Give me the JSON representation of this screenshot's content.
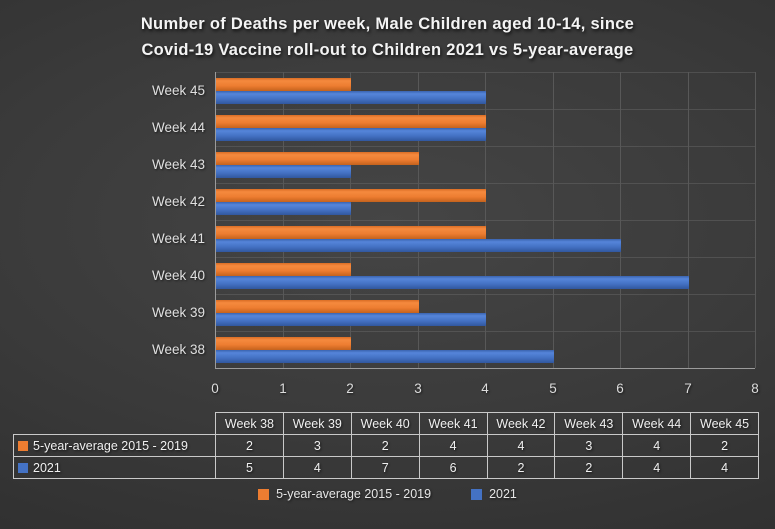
{
  "title": {
    "line1": "Number of Deaths per week, Male Children aged 10-14, since",
    "line2": "Covid-19 Vaccine roll-out to Children 2021 vs 5-year-average"
  },
  "colors": {
    "orange_series": "#ED7D31",
    "blue_series": "#4472C4",
    "background": "#3A3A3A",
    "text": "#E4E4E4",
    "gridline": "#585858",
    "axis_line": "#9B9B9B",
    "table_border": "#C9C9C9"
  },
  "chart_data": {
    "type": "bar",
    "orientation": "horizontal",
    "title": "Number of Deaths per week, Male Children aged 10-14, since Covid-19 Vaccine roll-out to Children 2021 vs 5-year-average",
    "categories": [
      "Week 38",
      "Week 39",
      "Week 40",
      "Week 41",
      "Week 42",
      "Week 43",
      "Week 44",
      "Week 45"
    ],
    "categories_displayed_top_to_bottom": [
      "Week 45",
      "Week 44",
      "Week 43",
      "Week 42",
      "Week 41",
      "Week 40",
      "Week 39",
      "Week 38"
    ],
    "series": [
      {
        "name": "5-year-average 2015 - 2019",
        "color": "#ED7D31",
        "values": [
          2,
          3,
          2,
          4,
          4,
          3,
          4,
          2
        ]
      },
      {
        "name": "2021",
        "color": "#4472C4",
        "values": [
          5,
          4,
          7,
          6,
          2,
          2,
          4,
          4
        ]
      }
    ],
    "xlabel": "",
    "ylabel": "",
    "x_ticks": [
      0,
      1,
      2,
      3,
      4,
      5,
      6,
      7,
      8
    ],
    "xlim": [
      0,
      8
    ],
    "grid": true,
    "legend_position": "bottom"
  },
  "data_table": {
    "column_headers": [
      "Week 38",
      "Week 39",
      "Week 40",
      "Week 41",
      "Week 42",
      "Week 43",
      "Week 44",
      "Week 45"
    ],
    "rows": [
      {
        "label": "5-year-average 2015 - 2019",
        "swatch_color": "#ED7D31",
        "values": [
          "2",
          "3",
          "2",
          "4",
          "4",
          "3",
          "4",
          "2"
        ]
      },
      {
        "label": "2021",
        "swatch_color": "#4472C4",
        "values": [
          "5",
          "4",
          "7",
          "6",
          "2",
          "2",
          "4",
          "4"
        ]
      }
    ]
  },
  "legend": {
    "items": [
      {
        "label": "5-year-average 2015 - 2019",
        "color": "#ED7D31"
      },
      {
        "label": "2021",
        "color": "#4472C4"
      }
    ]
  }
}
